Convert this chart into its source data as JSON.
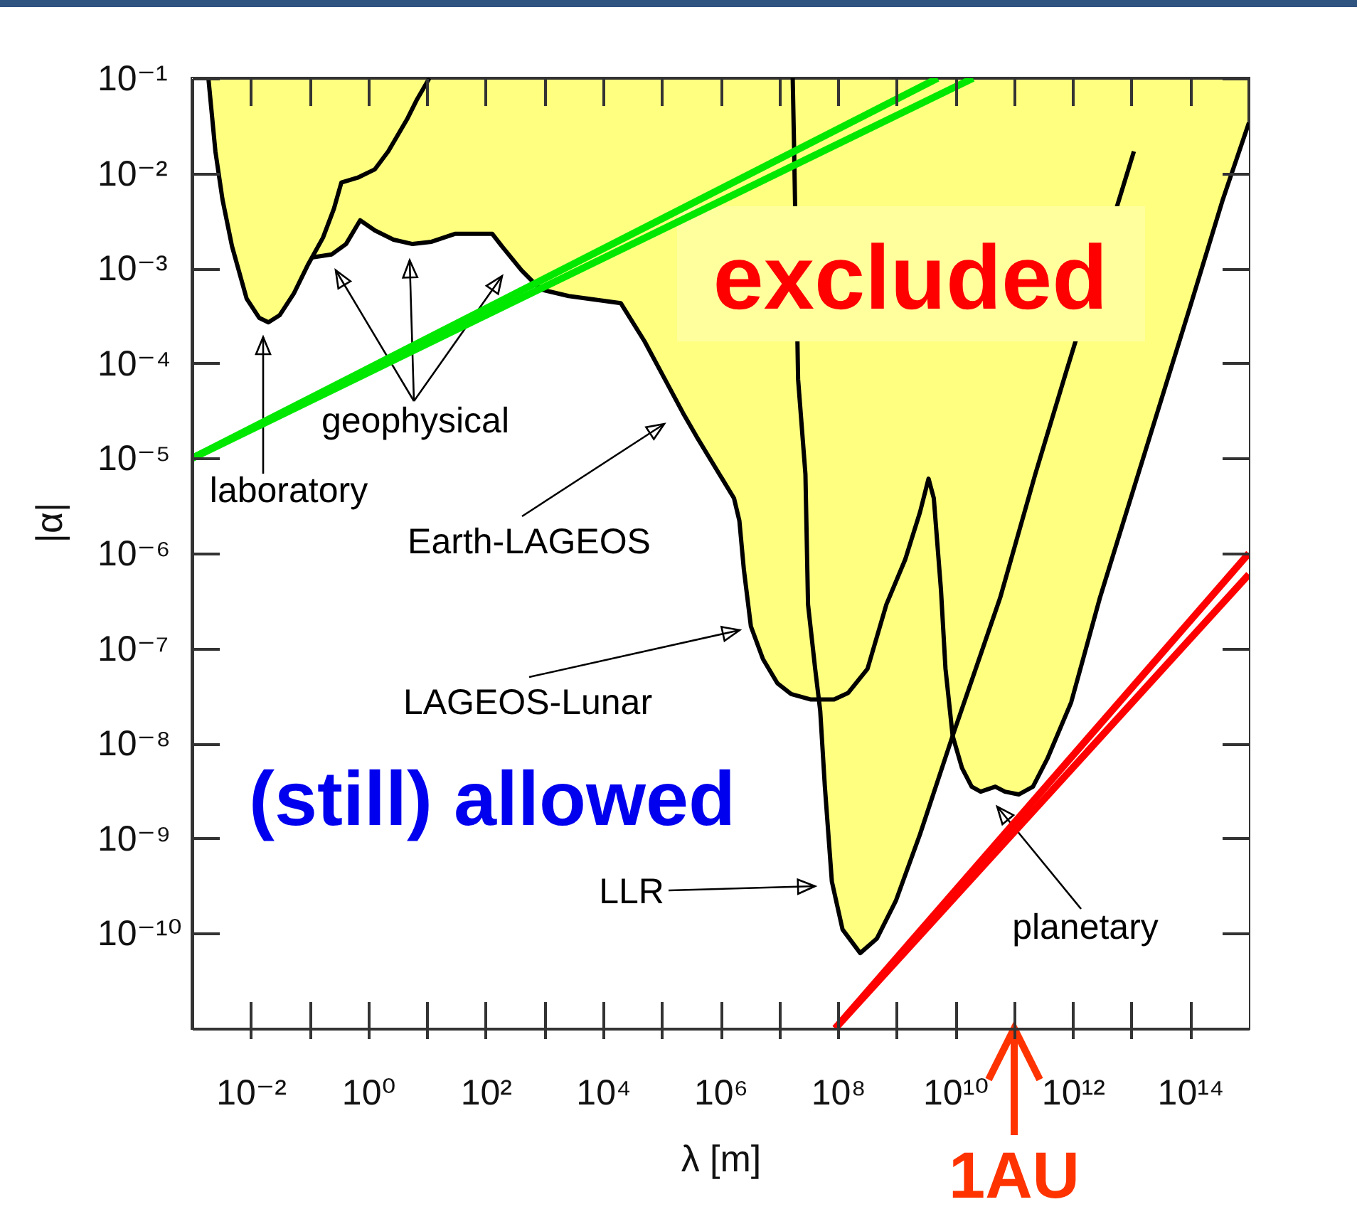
{
  "chart_data": {
    "type": "line",
    "xlabel": "λ [m]",
    "ylabel": "|α|",
    "log": "xy",
    "xlim": [
      0.001,
      1000000000000000.0
    ],
    "ylim": [
      1e-11,
      0.1
    ],
    "xticks": [
      {
        "value": 0.01,
        "label": "10⁻²"
      },
      {
        "value": 0.1,
        "label": null
      },
      {
        "value": 1,
        "label": "10⁰"
      },
      {
        "value": 10,
        "label": null
      },
      {
        "value": 100,
        "label": "10²"
      },
      {
        "value": 1000,
        "label": null
      },
      {
        "value": 10000,
        "label": "10⁴"
      },
      {
        "value": 100000,
        "label": null
      },
      {
        "value": 1000000,
        "label": "10⁶"
      },
      {
        "value": 10000000,
        "label": null
      },
      {
        "value": 100000000,
        "label": "10⁸"
      },
      {
        "value": 1000000000,
        "label": null
      },
      {
        "value": 10000000000,
        "label": "10¹⁰"
      },
      {
        "value": 100000000000,
        "label": null
      },
      {
        "value": 1000000000000,
        "label": "10¹²"
      },
      {
        "value": 10000000000000,
        "label": null
      },
      {
        "value": 100000000000000,
        "label": "10¹⁴"
      }
    ],
    "yticks": [
      {
        "value": 1e-10,
        "label": "10⁻¹⁰"
      },
      {
        "value": 1e-09,
        "label": "10⁻⁹"
      },
      {
        "value": 1e-08,
        "label": "10⁻⁸"
      },
      {
        "value": 1e-07,
        "label": "10⁻⁷"
      },
      {
        "value": 1e-06,
        "label": "10⁻⁶"
      },
      {
        "value": 1e-05,
        "label": "10⁻⁵"
      },
      {
        "value": 0.0001,
        "label": "10⁻⁴"
      },
      {
        "value": 0.001,
        "label": "10⁻³"
      },
      {
        "value": 0.01,
        "label": "10⁻²"
      },
      {
        "value": 0.1,
        "label": "10⁻¹"
      }
    ],
    "series": [
      {
        "type": "area",
        "color": "#ffffff",
        "x": [
          0.001,
          0.0019,
          0.0025,
          0.0033,
          0.0048,
          0.0085,
          0.014,
          0.02,
          0.031,
          0.054,
          0.095,
          0.11,
          0.24,
          0.42,
          0.73,
          1.3,
          2.7,
          5.7,
          12,
          30,
          130,
          190,
          410,
          860,
          2600,
          20000.0,
          51000.0,
          230000.0,
          390000.0,
          1700000.0,
          2100000.0,
          2500000.0,
          3300000.0,
          5300000.0,
          9300000.0,
          16000000.0,
          34000000.0,
          47000000.0,
          50000000.0,
          60000000.0,
          79000000.0,
          120000000.0,
          240000000.0,
          460000000.0,
          970000000.0,
          2500000000.0,
          9000000000.0,
          13000000000.0,
          19000000000.0,
          27000000000.0,
          48000000000.0,
          70000000000.0,
          120000000000.0,
          210000000000.0,
          370000000000.0,
          940000000000.0,
          2900000000000.0,
          13000000000000.0,
          98000000000000.0,
          360000000000000.0,
          1000000000000000.0
        ],
        "values": [
          0.1,
          0.1,
          0.017,
          0.0053,
          0.0017,
          0.00048,
          0.0003,
          0.00027,
          0.00032,
          0.00054,
          0.0011,
          0.0013,
          0.0014,
          0.0018,
          0.0032,
          0.0025,
          0.002,
          0.0018,
          0.0019,
          0.0023,
          0.0023,
          0.0017,
          0.00095,
          0.0006,
          0.00051,
          0.00043,
          0.00017,
          3e-05,
          1.7e-05,
          3.8e-06,
          2.2e-06,
          6.8e-07,
          1.7e-07,
          7.7e-08,
          4.3e-08,
          3.3e-08,
          2.9e-08,
          2.9e-08,
          2.2e-08,
          3.5e-09,
          3.5e-10,
          1.1e-10,
          6.2e-11,
          8.8e-11,
          2.2e-10,
          1.1e-09,
          1.2e-08,
          5.5e-09,
          3.5e-09,
          3.1e-09,
          3.5e-09,
          3.1e-09,
          2.9e-09,
          3.5e-09,
          6.9e-09,
          2.7e-08,
          3.4e-07,
          6.8e-06,
          0.00038,
          0.0053,
          0.034
        ]
      },
      {
        "color": "#000000",
        "x": [
          0.0019,
          0.0025,
          0.0033,
          0.0048,
          0.0085,
          0.014,
          0.02,
          0.031,
          0.054,
          0.095,
          0.17,
          0.26,
          0.35,
          0.67,
          1.3,
          2.2,
          4.7,
          6.8,
          11
        ],
        "values": [
          0.1,
          0.017,
          0.0053,
          0.0017,
          0.00048,
          0.0003,
          0.00027,
          0.00032,
          0.00054,
          0.0011,
          0.0021,
          0.0042,
          0.008,
          0.009,
          0.011,
          0.017,
          0.038,
          0.06,
          0.1
        ]
      },
      {
        "color": "#000000",
        "x": [
          0.11,
          0.24,
          0.42,
          0.73,
          1.3,
          2.7,
          5.7,
          12,
          30,
          130,
          190,
          410,
          860,
          2600,
          20000.0,
          51000.0,
          230000.0,
          390000.0,
          1700000.0,
          2100000.0,
          2500000.0,
          3300000.0,
          5300000.0,
          9300000.0,
          16000000.0,
          34000000.0,
          86000000.0,
          150000000.0,
          320000000.0,
          670000000.0,
          1400000000.0,
          2500000000.0,
          3500000000.0,
          4300000000.0,
          5700000000.0,
          6800000000.0,
          9000000000.0,
          13000000000.0,
          19000000000.0,
          27000000000.0,
          48000000000.0,
          70000000000.0,
          120000000000.0,
          210000000000.0,
          370000000000.0,
          940000000000.0,
          2900000000000.0,
          13000000000000.0,
          98000000000000.0,
          360000000000000.0,
          1000000000000000.0
        ],
        "values": [
          0.0013,
          0.0014,
          0.0018,
          0.0032,
          0.0025,
          0.002,
          0.0018,
          0.0019,
          0.0023,
          0.0023,
          0.0017,
          0.00095,
          0.0006,
          0.00051,
          0.00043,
          0.00017,
          3e-05,
          1.7e-05,
          3.8e-06,
          2.2e-06,
          6.8e-07,
          1.7e-07,
          7.7e-08,
          4.3e-08,
          3.3e-08,
          2.9e-08,
          2.9e-08,
          3.4e-08,
          6.1e-08,
          2.9e-07,
          8.6e-07,
          2.7e-06,
          6.1e-06,
          3.8e-06,
          4.1e-07,
          6.1e-08,
          1.2e-08,
          5.5e-09,
          3.5e-09,
          3.1e-09,
          3.5e-09,
          3.1e-09,
          2.9e-09,
          3.5e-09,
          6.9e-09,
          2.7e-08,
          3.4e-07,
          6.8e-06,
          0.00038,
          0.0053,
          0.034
        ]
      },
      {
        "color": "#000000",
        "x": [
          17000000.0,
          18000000.0,
          21000000.0,
          28000000.0,
          31000000.0,
          41000000.0,
          50000000.0,
          60000000.0,
          79000000.0,
          120000000.0,
          240000000.0,
          460000000.0,
          970000000.0,
          2500000000.0,
          9000000000.0,
          27000000000.0,
          58000000000.0,
          230000000000.0,
          790000000000.0,
          11000000000000.0
        ],
        "values": [
          0.1,
          0.017,
          6.8e-05,
          6.8e-06,
          2.9e-07,
          6.1e-08,
          2.2e-08,
          3.5e-09,
          3.5e-10,
          1.1e-10,
          6.2e-11,
          8.8e-11,
          2.2e-10,
          1.1e-09,
          1.2e-08,
          8.6e-08,
          3.4e-07,
          6.8e-06,
          8.5e-05,
          0.017
        ]
      },
      {
        "color": "#00e800",
        "x": [
          0.001,
          5000000000.0
        ],
        "values": [
          1e-05,
          0.1
        ]
      },
      {
        "color": "#00e800",
        "x": [
          0.001,
          20000000000.0
        ],
        "values": [
          1e-05,
          0.1
        ]
      },
      {
        "color": "#ff0000",
        "x": [
          90000000.0,
          1000000000000000.0
        ],
        "values": [
          1e-11,
          1e-06
        ]
      },
      {
        "color": "#ff0000",
        "x": [
          90000000.0,
          1000000000000000.0
        ],
        "values": [
          1e-11,
          6e-07
        ]
      }
    ],
    "annotations": [
      "laboratory",
      "geophysical",
      "Earth-LAGEOS",
      "LAGEOS-Lunar",
      "LLR",
      "planetary",
      "excluded",
      "(still) allowed",
      "1AU"
    ]
  }
}
